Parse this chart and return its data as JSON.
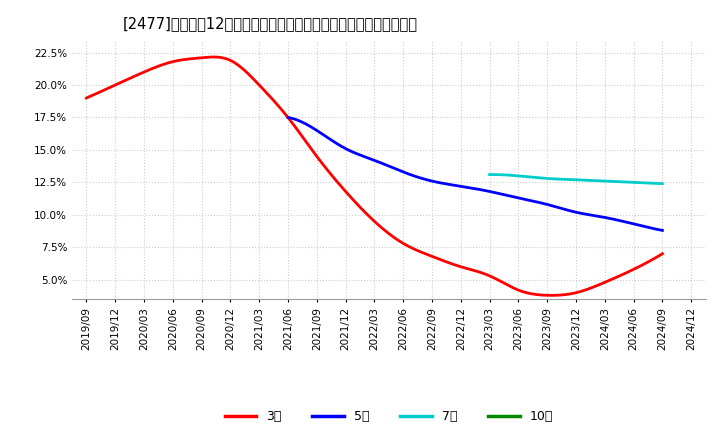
{
  "title": "[2477]　売上高12か月移動合計の対前年同期増減率の平均値の推移",
  "ylim": [
    0.035,
    0.235
  ],
  "yticks": [
    0.05,
    0.075,
    0.1,
    0.125,
    0.15,
    0.175,
    0.2,
    0.225
  ],
  "background_color": "#ffffff",
  "grid_color": "#cccccc",
  "series": {
    "3年": {
      "color": "#ff0000",
      "x": [
        "2019/09",
        "2019/12",
        "2020/03",
        "2020/06",
        "2020/09",
        "2020/12",
        "2021/03",
        "2021/06",
        "2021/09",
        "2021/12",
        "2022/03",
        "2022/06",
        "2022/09",
        "2022/12",
        "2023/03",
        "2023/06",
        "2023/09",
        "2023/12",
        "2024/03",
        "2024/06",
        "2024/09"
      ],
      "y": [
        0.19,
        0.2,
        0.21,
        0.218,
        0.221,
        0.219,
        0.2,
        0.175,
        0.145,
        0.118,
        0.095,
        0.078,
        0.068,
        0.06,
        0.053,
        0.042,
        0.038,
        0.04,
        0.048,
        0.058,
        0.07
      ]
    },
    "5年": {
      "color": "#0000ff",
      "x": [
        "2021/06",
        "2021/09",
        "2021/12",
        "2022/03",
        "2022/06",
        "2022/09",
        "2022/12",
        "2023/03",
        "2023/06",
        "2023/09",
        "2023/12",
        "2024/03",
        "2024/06",
        "2024/09"
      ],
      "y": [
        0.175,
        0.165,
        0.151,
        0.142,
        0.133,
        0.126,
        0.122,
        0.118,
        0.113,
        0.108,
        0.102,
        0.098,
        0.093,
        0.088
      ]
    },
    "7年": {
      "color": "#00cccc",
      "x": [
        "2023/03",
        "2023/06",
        "2023/09",
        "2023/12",
        "2024/03",
        "2024/06",
        "2024/09"
      ],
      "y": [
        0.131,
        0.13,
        0.128,
        0.127,
        0.126,
        0.125,
        0.124
      ]
    },
    "10年": {
      "color": "#008800",
      "x": [],
      "y": []
    }
  },
  "legend_labels": [
    "3年",
    "5年",
    "7年",
    "10年"
  ],
  "legend_colors": [
    "#ff0000",
    "#0000ff",
    "#00cccc",
    "#008800"
  ],
  "xtick_labels": [
    "2019/09",
    "2019/12",
    "2020/03",
    "2020/06",
    "2020/09",
    "2020/12",
    "2021/03",
    "2021/06",
    "2021/09",
    "2021/12",
    "2022/03",
    "2022/06",
    "2022/09",
    "2022/12",
    "2023/03",
    "2023/06",
    "2023/09",
    "2023/12",
    "2024/03",
    "2024/06",
    "2024/09",
    "2024/12"
  ],
  "title_fontsize": 10.5,
  "tick_fontsize": 7.5,
  "legend_fontsize": 9,
  "linewidth": 2.0
}
